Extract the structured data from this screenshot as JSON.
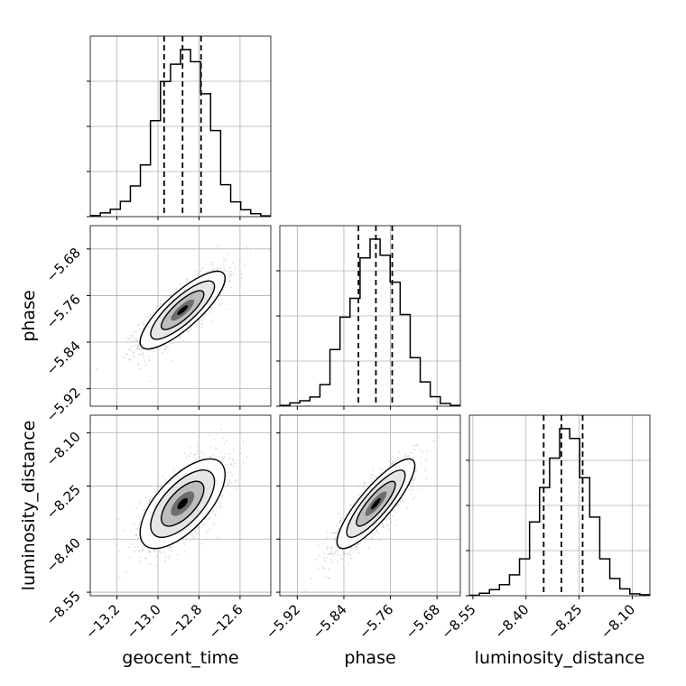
{
  "chart_data": {
    "type": "corner",
    "parameters": [
      {
        "label": "geocent_time",
        "range": [
          -13.33,
          -12.45
        ],
        "ticks": [
          -13.2,
          -13.0,
          -12.8,
          -12.6
        ],
        "tick_labels": [
          "−13.2",
          "−13.0",
          "−12.8",
          "−12.6"
        ],
        "quantiles": [
          -12.97,
          -12.88,
          -12.79
        ]
      },
      {
        "label": "phase",
        "range": [
          -5.95,
          -5.64
        ],
        "ticks": [
          -5.92,
          -5.84,
          -5.76,
          -5.68
        ],
        "tick_labels": [
          "−5.92",
          "−5.84",
          "−5.76",
          "−5.68"
        ],
        "quantiles": [
          -5.815,
          -5.785,
          -5.757
        ]
      },
      {
        "label": "luminosity_distance",
        "range": [
          -8.56,
          -8.05
        ],
        "ticks": [
          -8.55,
          -8.4,
          -8.25,
          -8.1
        ],
        "tick_labels": [
          "−8.55",
          "−8.40",
          "−8.25",
          "−8.10"
        ],
        "quantiles": [
          -8.35,
          -8.3,
          -8.24
        ]
      }
    ],
    "histograms": [
      [
        0.4,
        1.5,
        3.0,
        6.2,
        12.5,
        21.0,
        39.0,
        55.0,
        62.0,
        68.0,
        63.0,
        50.0,
        35.0,
        13.0,
        6.0,
        2.8,
        1.2,
        0.3
      ],
      [
        0.3,
        1.2,
        2.0,
        3.4,
        8.0,
        21.0,
        33.0,
        40.0,
        55.0,
        62.0,
        56.0,
        46.0,
        34.0,
        18.0,
        9.0,
        3.5,
        1.0,
        0.3
      ],
      [
        0.2,
        1.0,
        2.5,
        4.5,
        8.5,
        15.0,
        30.0,
        44.0,
        56.0,
        68.0,
        64.0,
        48.0,
        32.0,
        15.0,
        7.0,
        2.8,
        0.8,
        0.4
      ]
    ],
    "correlations": [
      [
        1.0,
        0.82,
        0.65
      ],
      [
        0.82,
        1.0,
        0.85
      ],
      [
        0.65,
        0.85,
        1.0
      ]
    ],
    "colors": {
      "scatter": "#9e9e9e",
      "hist_line": "#000000",
      "quantile_line": "#000000",
      "grid": "#b0b0b0",
      "contour": "#000000"
    },
    "grid": true,
    "x_labels_rotated": true
  }
}
